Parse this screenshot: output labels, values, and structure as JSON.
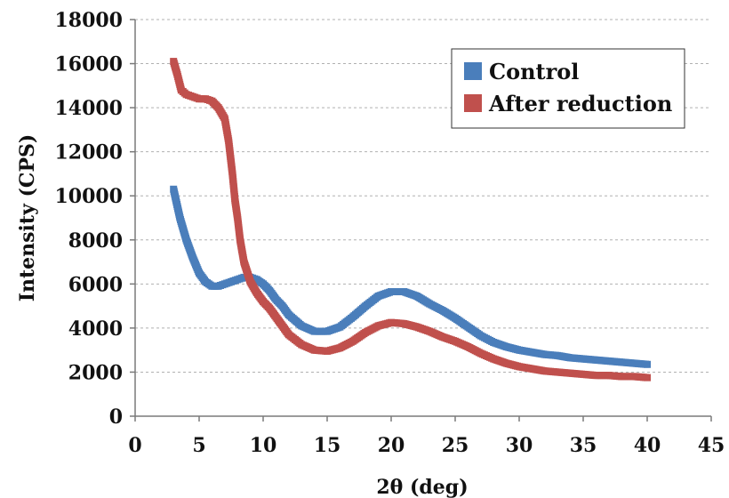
{
  "chart_data": {
    "type": "scatter",
    "title": "",
    "xlabel": "2θ (deg)",
    "ylabel": "Intensity (CPS)",
    "xlim": [
      0,
      45
    ],
    "ylim": [
      0,
      18000
    ],
    "xticks": [
      0,
      5,
      10,
      15,
      20,
      25,
      30,
      35,
      40,
      45
    ],
    "yticks": [
      0,
      2000,
      4000,
      6000,
      8000,
      10000,
      12000,
      14000,
      16000,
      18000
    ],
    "grid": "horizontal dashed",
    "legend_position": "top-right",
    "series": [
      {
        "name": "Control",
        "color": "#4a7ebb",
        "x": [
          3,
          3.5,
          4,
          4.5,
          5,
          5.5,
          6,
          6.5,
          7,
          7.5,
          8,
          8.5,
          9,
          9.5,
          10,
          10.5,
          11,
          11.5,
          12,
          13,
          14,
          15,
          16,
          17,
          18,
          19,
          20,
          21,
          22,
          23,
          24,
          25,
          26,
          27,
          28,
          29,
          30,
          31,
          32,
          33,
          34,
          35,
          36,
          37,
          38,
          39,
          40
        ],
        "y": [
          10300,
          9000,
          8000,
          7200,
          6500,
          6100,
          5900,
          5900,
          6000,
          6100,
          6200,
          6300,
          6300,
          6200,
          6000,
          5700,
          5300,
          5000,
          4600,
          4100,
          3850,
          3850,
          4050,
          4500,
          5000,
          5450,
          5650,
          5650,
          5450,
          5100,
          4800,
          4450,
          4050,
          3650,
          3350,
          3150,
          3000,
          2900,
          2800,
          2750,
          2650,
          2600,
          2550,
          2500,
          2450,
          2400,
          2350
        ]
      },
      {
        "name": "After reduction",
        "color": "#c0504d",
        "x": [
          3,
          3.3,
          3.6,
          4,
          4.5,
          5,
          5.5,
          6,
          6.5,
          7,
          7.3,
          7.6,
          7.8,
          8,
          8.2,
          8.5,
          9,
          9.5,
          10,
          10.5,
          11,
          11.5,
          12,
          13,
          14,
          15,
          16,
          17,
          18,
          19,
          20,
          21,
          22,
          23,
          24,
          25,
          26,
          27,
          28,
          29,
          30,
          31,
          32,
          33,
          34,
          35,
          36,
          37,
          38,
          39,
          40
        ],
        "y": [
          16100,
          15500,
          14800,
          14600,
          14500,
          14400,
          14400,
          14300,
          14000,
          13500,
          12500,
          11000,
          9800,
          9000,
          8000,
          7000,
          6100,
          5600,
          5200,
          4900,
          4500,
          4100,
          3700,
          3250,
          3000,
          2950,
          3100,
          3400,
          3800,
          4100,
          4250,
          4200,
          4050,
          3850,
          3600,
          3400,
          3150,
          2850,
          2600,
          2400,
          2250,
          2150,
          2050,
          2000,
          1950,
          1900,
          1850,
          1850,
          1800,
          1800,
          1750
        ]
      }
    ]
  }
}
